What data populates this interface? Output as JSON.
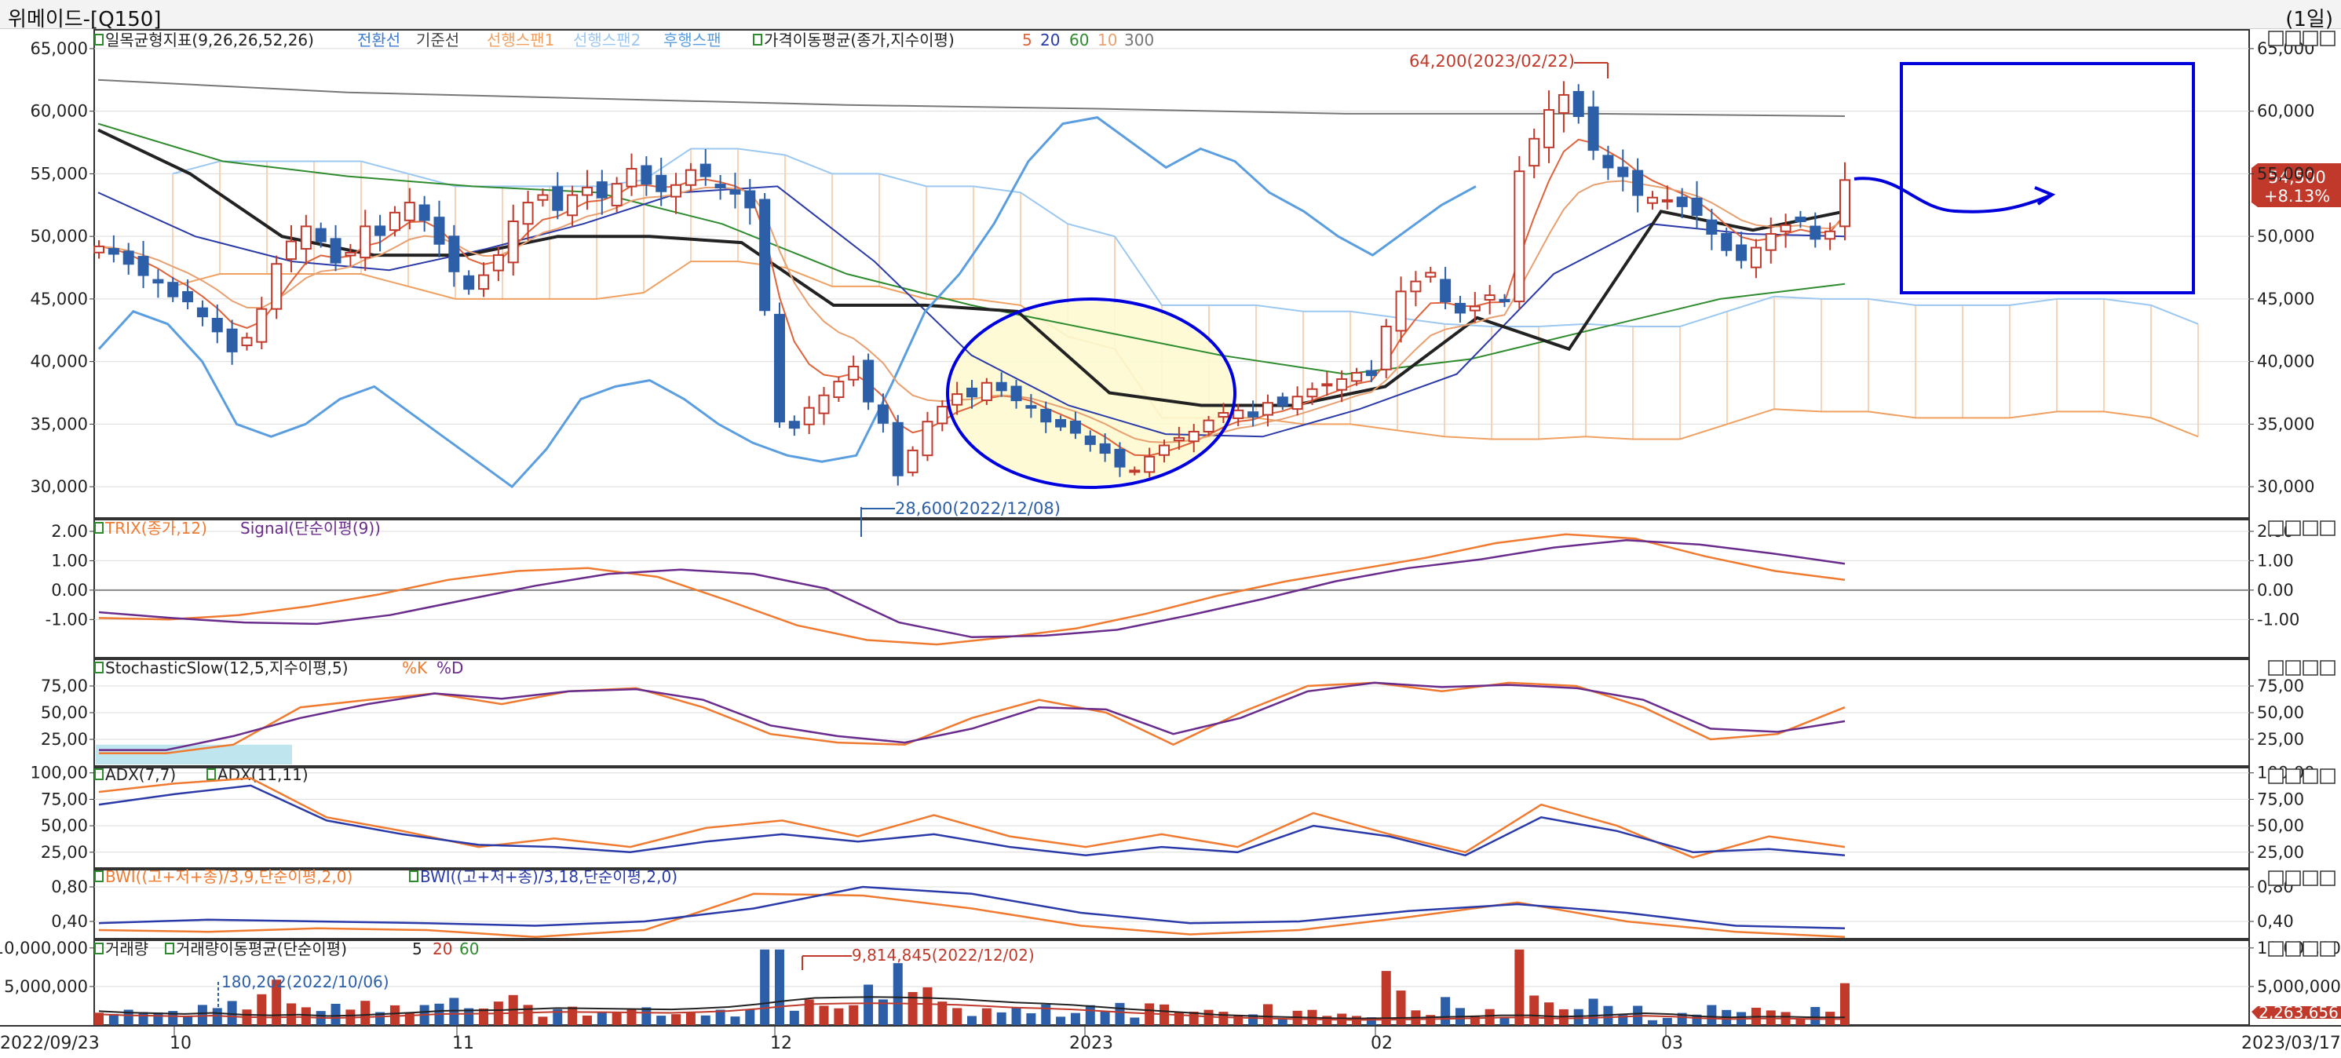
{
  "window": {
    "title": "위메이드-[Q150]",
    "period": "(1일)"
  },
  "colors": {
    "up": "#c0392b",
    "down": "#2c5fa8",
    "tenkan": "#3f7ccf",
    "kijun": "#222222",
    "senkou1": "#f0a060",
    "senkou2": "#9cc8f0",
    "chikou": "#5a9ee0",
    "ma5": "#e0623a",
    "ma20": "#2a3aa8",
    "ma60": "#2e8b2e",
    "ma10": "#e8a070",
    "ma300": "#777777",
    "trix": "#f07a30",
    "signal": "#6a2c8c",
    "annotation": "#0000dd",
    "ellipse_fill": "#fdfad0"
  },
  "chart_data": [
    {
      "type": "candlestick",
      "id": "price",
      "legend": {
        "ichimoku_label": "일목균형지표(9,26,26,52,26)",
        "ichimoku_lines": [
          "전환선",
          "기준선",
          "선행스팬1",
          "선행스팬2",
          "후행스팬"
        ],
        "ma_label": "가격이동평균(종가,지수이평)",
        "ma_periods": [
          "5",
          "20",
          "60",
          "10",
          "300"
        ]
      },
      "ylim": [
        27500,
        66500
      ],
      "y_ticks": [
        "65,000",
        "60,000",
        "55,000",
        "50,000",
        "45,000",
        "40,000",
        "35,000",
        "30,000"
      ],
      "y_tick_values": [
        65000,
        60000,
        55000,
        50000,
        45000,
        40000,
        35000,
        30000
      ],
      "annotations": {
        "high": "64,200(2023/02/22)",
        "low": "28,600(2022/12/08)"
      },
      "last_price": {
        "value": "54,500",
        "change": "+8.13%"
      },
      "close_path": [
        49200,
        48600,
        47800,
        46900,
        46300,
        45200,
        44800,
        43600,
        42400,
        40800,
        41900,
        44200,
        47800,
        49600,
        50800,
        49600,
        47900,
        48700,
        50800,
        50100,
        51900,
        52700,
        51300,
        49400,
        47200,
        45800,
        46900,
        48500,
        51200,
        52700,
        53300,
        52100,
        53300,
        53900,
        53100,
        54200,
        55400,
        54200,
        53600,
        54100,
        55300,
        54800,
        53900,
        53400,
        52300,
        44100,
        35200,
        34700,
        36300,
        37300,
        38400,
        39600,
        36800,
        35100,
        30900,
        32900,
        35200,
        36400,
        37400,
        37200,
        38300,
        37700,
        36900,
        36300,
        35200,
        34800,
        34300,
        33400,
        32700,
        31600,
        31300,
        32400,
        33300,
        33900,
        34400,
        35300,
        35900,
        36100,
        35600,
        36700,
        36500,
        37200,
        37800,
        38200,
        38600,
        39100,
        38900,
        42800,
        45600,
        46400,
        47100,
        44800,
        43900,
        44400,
        45300,
        44800,
        55200,
        57800,
        60100,
        61300,
        59600,
        56900,
        55500,
        54800,
        53300,
        53100,
        52900,
        52400,
        51700,
        50200,
        48900,
        48100,
        49100,
        50200,
        50900,
        51200,
        49800,
        50400,
        54500
      ],
      "volume_path": [
        4.0,
        3.6,
        3.4,
        3.2,
        3.5,
        3.0,
        2.8,
        3.0,
        2.6,
        2.8,
        3.2,
        3.6,
        4.1,
        4.2,
        4.3,
        4.6,
        4.9,
        4.8,
        4.7,
        4.6,
        4.5,
        4.8,
        5.2,
        6.0,
        7.0,
        7.8,
        8.0,
        8.1,
        8.0,
        7.8,
        7.5,
        7.0,
        6.5,
        6.2,
        5.8,
        5.2,
        4.6,
        4.1,
        3.6,
        3.0,
        2.7,
        2.4,
        2.2,
        2.0,
        1.9,
        2.0,
        2.1,
        2.3,
        2.5,
        2.8,
        2.8,
        2.4,
        2.6,
        3.0,
        3.4,
        3.1,
        2.5,
        2.2,
        2.4,
        2.4,
        2.2,
        2.2
      ],
      "ichimoku_cloud_upper_path": [
        55000,
        56000,
        56000,
        56000,
        56000,
        55000,
        54000,
        54000,
        54000,
        54000,
        54500,
        57000,
        57000,
        56500,
        55000,
        55000,
        54000,
        54000,
        53500,
        51000,
        50000,
        44500,
        44500,
        44500,
        44000,
        44000,
        43500,
        43000,
        42800,
        42800,
        43000,
        42800,
        42800,
        44000,
        45200,
        45000,
        45000,
        44500,
        44500,
        44500,
        45000,
        45000,
        44500,
        43000
      ],
      "chikou_path": [
        41000,
        44000,
        43000,
        40000,
        35000,
        34000,
        35000,
        37000,
        38000,
        36000,
        34000,
        32000,
        30000,
        33000,
        37000,
        38000,
        38500,
        37000,
        35000,
        33500,
        32500,
        32000,
        32500,
        38000,
        44000,
        47000,
        51000,
        56000,
        59000,
        59500,
        57500,
        55500,
        57000,
        56000,
        53500,
        52000,
        50000,
        48500,
        50500,
        52500,
        54000
      ],
      "ma_paths": {
        "ma300": [
          62500,
          61500,
          61000,
          60500,
          60200,
          59800,
          59800,
          59600
        ],
        "ma60": [
          59000,
          56000,
          54800,
          54000,
          53500,
          51000,
          47000,
          44500,
          42500,
          40500,
          39000,
          40200,
          42600,
          45000,
          46200
        ],
        "ma20": [
          53500,
          50000,
          48000,
          47300,
          49000,
          51000,
          53500,
          54000,
          48000,
          40500,
          36500,
          34200,
          34000,
          36200,
          39000,
          47000,
          51000,
          50200,
          50000
        ],
        "kijun": [
          58500,
          55000,
          50000,
          48500,
          48500,
          50000,
          50000,
          49500,
          44500,
          44500,
          44000,
          37500,
          36500,
          36500,
          38000,
          43500,
          41000,
          52000,
          50500,
          52000
        ]
      }
    },
    {
      "type": "line",
      "id": "trix",
      "legend": {
        "main": "TRIX(종가,12)",
        "signal": "Signal(단순이평(9))"
      },
      "ylim": [
        -2.3,
        2.4
      ],
      "y_ticks": [
        "2.00",
        "1.00",
        "0.00",
        "-1.00"
      ],
      "y_tick_values": [
        2,
        1,
        0,
        -1
      ],
      "series": [
        {
          "name": "TRIX(종가,12)",
          "values": [
            -0.95,
            -1.0,
            -0.85,
            -0.55,
            -0.15,
            0.35,
            0.65,
            0.75,
            0.45,
            -0.35,
            -1.2,
            -1.7,
            -1.85,
            -1.6,
            -1.3,
            -0.8,
            -0.2,
            0.3,
            0.7,
            1.1,
            1.6,
            1.9,
            1.75,
            1.15,
            0.65,
            0.35
          ]
        },
        {
          "name": "Signal(단순이평(9))",
          "values": [
            -0.75,
            -0.95,
            -1.1,
            -1.15,
            -0.85,
            -0.35,
            0.15,
            0.55,
            0.7,
            0.55,
            0.05,
            -1.1,
            -1.6,
            -1.55,
            -1.35,
            -0.85,
            -0.3,
            0.3,
            0.75,
            1.05,
            1.45,
            1.7,
            1.55,
            1.25,
            0.9
          ]
        }
      ]
    },
    {
      "type": "line",
      "id": "stochastic",
      "legend": {
        "main": "StochasticSlow(12,5,지수이평,5)",
        "k": "%K",
        "d": "%D"
      },
      "ylim": [
        0,
        100
      ],
      "y_ticks": [
        "75,00",
        "50,00",
        "25,00"
      ],
      "y_tick_values": [
        75,
        50,
        25
      ],
      "series": [
        {
          "name": "%K",
          "values": [
            12,
            12,
            20,
            55,
            62,
            68,
            58,
            70,
            73,
            55,
            30,
            22,
            20,
            45,
            62,
            50,
            20,
            50,
            75,
            78,
            70,
            78,
            75,
            55,
            25,
            30,
            55
          ]
        },
        {
          "name": "%D",
          "values": [
            15,
            15,
            28,
            45,
            58,
            68,
            63,
            70,
            72,
            62,
            38,
            28,
            22,
            35,
            55,
            53,
            30,
            45,
            70,
            78,
            74,
            76,
            73,
            62,
            35,
            32,
            42
          ]
        }
      ]
    },
    {
      "type": "line",
      "id": "adx",
      "legend": {
        "a": "ADX(7,7)",
        "b": "ADX(11,11)"
      },
      "ylim": [
        10,
        105
      ],
      "y_ticks": [
        "100,00",
        "75,00",
        "50,00",
        "25,00"
      ],
      "y_tick_values": [
        100,
        75,
        50,
        25
      ],
      "series": [
        {
          "name": "ADX(7,7)",
          "values": [
            82,
            90,
            95,
            58,
            45,
            30,
            38,
            30,
            48,
            55,
            40,
            60,
            40,
            30,
            42,
            30,
            62,
            42,
            25,
            70,
            50,
            20,
            40,
            30
          ]
        },
        {
          "name": "ADX(11,11)",
          "values": [
            70,
            80,
            88,
            55,
            42,
            32,
            30,
            25,
            35,
            42,
            35,
            42,
            30,
            22,
            30,
            25,
            50,
            40,
            22,
            58,
            45,
            25,
            28,
            22
          ]
        }
      ]
    },
    {
      "type": "line",
      "id": "bwi",
      "legend": {
        "a": "BWI((고+저+종)/3,9,단순이평,2,0)",
        "b": "BWI((고+저+종)/3,18,단순이평,2,0)"
      },
      "ylim": [
        0.2,
        1.0
      ],
      "y_ticks": [
        "0,80",
        "0,40"
      ],
      "y_tick_values": [
        0.8,
        0.4
      ],
      "series": [
        {
          "name": "BWI((고+저+종)/3,9,단순이평,2,0)",
          "values": [
            0.3,
            0.28,
            0.32,
            0.3,
            0.22,
            0.3,
            0.72,
            0.7,
            0.55,
            0.35,
            0.25,
            0.3,
            0.45,
            0.62,
            0.4,
            0.28,
            0.22
          ]
        },
        {
          "name": "BWI((고+저+종)/3,18,단순이평,2,0)",
          "values": [
            0.38,
            0.42,
            0.4,
            0.38,
            0.35,
            0.4,
            0.55,
            0.8,
            0.72,
            0.5,
            0.38,
            0.4,
            0.52,
            0.6,
            0.5,
            0.35,
            0.32
          ]
        }
      ]
    },
    {
      "type": "bar",
      "id": "volume",
      "legend": {
        "vol": "거래량",
        "ma": "거래량이동평균(단순이평)",
        "ma_periods": [
          "5",
          "20",
          "60"
        ]
      },
      "ylim": [
        0,
        11000000
      ],
      "y_ticks": [
        "10,000,000",
        "5,000,000"
      ],
      "y_tick_values": [
        10000000,
        5000000
      ],
      "annotations": {
        "high": "9,814,845(2022/12/02)",
        "low": "180,202(2022/10/06)"
      },
      "last_value": "2,263,656"
    }
  ],
  "x_axis": {
    "labels": [
      "2022/09/23",
      "10",
      "11",
      "12",
      "2023",
      "02",
      "03",
      "2023/03/17"
    ]
  }
}
